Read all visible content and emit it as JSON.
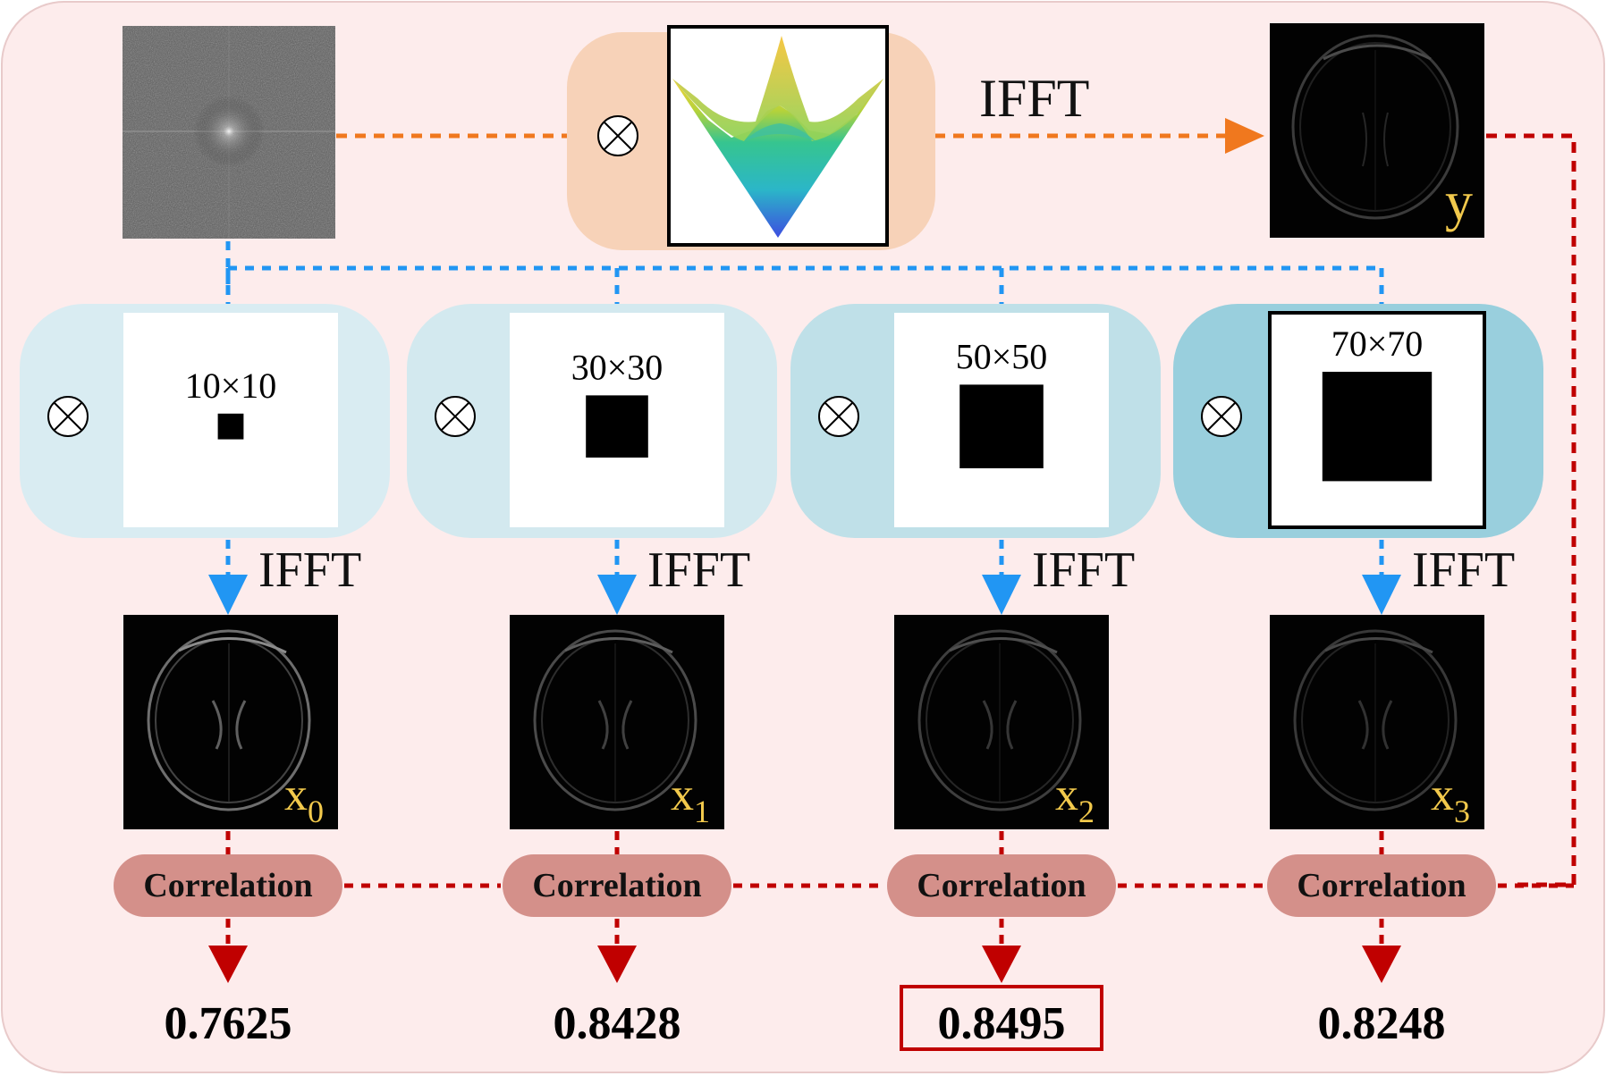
{
  "top_pipeline": {
    "operator_symbol": "⊗",
    "transform_label": "IFFT",
    "output_label": "y"
  },
  "masks": [
    {
      "size_label": "10×10",
      "mask_fraction": 0.12
    },
    {
      "size_label": "30×30",
      "mask_fraction": 0.29
    },
    {
      "size_label": "50×50",
      "mask_fraction": 0.39
    },
    {
      "size_label": "70×70",
      "mask_fraction": 0.51
    }
  ],
  "branches": [
    {
      "transform_label": "IFFT",
      "image_label": "x",
      "subscript": "0",
      "correlation_label": "Correlation",
      "score": "0.7625",
      "highlighted": false
    },
    {
      "transform_label": "IFFT",
      "image_label": "x",
      "subscript": "1",
      "correlation_label": "Correlation",
      "score": "0.8428",
      "highlighted": false
    },
    {
      "transform_label": "IFFT",
      "image_label": "x",
      "subscript": "2",
      "correlation_label": "Correlation",
      "score": "0.8495",
      "highlighted": true
    },
    {
      "transform_label": "IFFT",
      "image_label": "x",
      "subscript": "3",
      "correlation_label": "Correlation",
      "score": "0.8248",
      "highlighted": false
    }
  ],
  "colors": {
    "background_panel": "#fdecec",
    "orange_arrow": "#f0781e",
    "blue_arrow": "#2196f3",
    "red_arrow": "#c00000",
    "correlation_pill": "#d4908a",
    "label_yellow": "#f2c94c",
    "mask_panel_0": "#d9ecf2",
    "mask_panel_1": "#d3e9ef",
    "mask_panel_2": "#bfe0e8",
    "mask_panel_3": "#99cfdd",
    "peach_panel": "#f7d2b8"
  }
}
